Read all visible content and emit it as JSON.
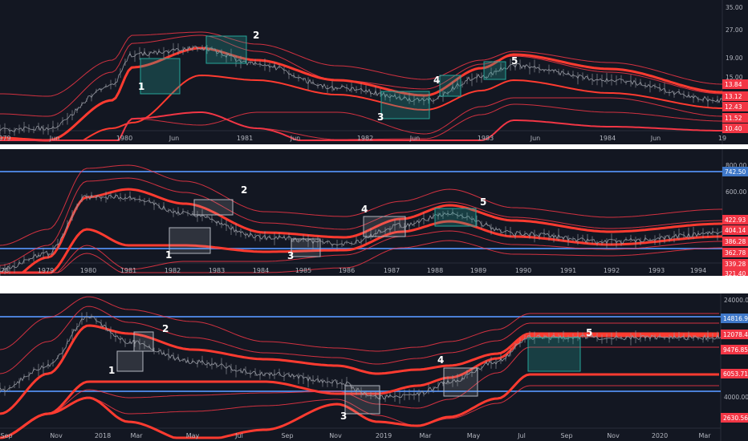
{
  "colors": {
    "background": "#131722",
    "band": "#f23645",
    "band_bright": "#ff3b30",
    "price": "#9598a1",
    "hline": "#4a7fd6",
    "box_teal": "#26a69a",
    "box_gray": "#b2b5be",
    "separator": "#ffffff",
    "text": "#b2b5be",
    "label_red": "#f23645",
    "label_blue": "#3f78c9"
  },
  "chart_data": [
    {
      "type": "line",
      "x_ticks": [
        "979",
        "Jun",
        "1980",
        "Jun",
        "1981",
        "Jun",
        "1982",
        "Jun",
        "1983",
        "Jun",
        "1984",
        "Jun",
        "19"
      ],
      "y_ticks": [
        "35.00",
        "27.00",
        "19.00",
        "15.00"
      ],
      "price_labels": [
        "13.84",
        "13.12",
        "12.43",
        "11.52",
        "10.40"
      ],
      "hlines": [],
      "boxes": [
        {
          "label": "1",
          "style": "teal"
        },
        {
          "label": "2",
          "style": "teal"
        },
        {
          "label": "3",
          "style": "teal"
        },
        {
          "label": "4",
          "style": "teal"
        },
        {
          "label": "5",
          "style": "teal"
        }
      ]
    },
    {
      "type": "line",
      "x_ticks": [
        "78",
        "1979",
        "1980",
        "1981",
        "1982",
        "1983",
        "1984",
        "1985",
        "1986",
        "1987",
        "1988",
        "1989",
        "1990",
        "1991",
        "1992",
        "1993",
        "1994"
      ],
      "y_ticks": [
        "800.00",
        "600.00"
      ],
      "price_labels": [
        "742.50",
        "422.93",
        "404.14",
        "386.28",
        "362.78",
        "339.28",
        "321.40"
      ],
      "hlines": [
        742.5,
        362.78
      ],
      "boxes": [
        {
          "label": "1",
          "style": "gray"
        },
        {
          "label": "2",
          "style": "gray"
        },
        {
          "label": "3",
          "style": "gray"
        },
        {
          "label": "4",
          "style": "gray"
        },
        {
          "label": "5",
          "style": "teal"
        }
      ]
    },
    {
      "type": "line",
      "x_ticks": [
        "Sep",
        "Nov",
        "2018",
        "Mar",
        "May",
        "Jul",
        "Sep",
        "Nov",
        "2019",
        "Mar",
        "May",
        "Jul",
        "Sep",
        "Nov",
        "2020",
        "Mar"
      ],
      "y_ticks": [
        "24000.00",
        "4000.00"
      ],
      "price_labels": [
        "14816.96",
        "12078.44",
        "9476.85",
        "6053.71",
        "2630.56"
      ],
      "hlines": [
        14816.96,
        4000
      ],
      "boxes": [
        {
          "label": "1",
          "style": "gray"
        },
        {
          "label": "2",
          "style": "gray"
        },
        {
          "label": "3",
          "style": "gray"
        },
        {
          "label": "4",
          "style": "gray"
        },
        {
          "label": "5",
          "style": "teal"
        }
      ]
    }
  ]
}
